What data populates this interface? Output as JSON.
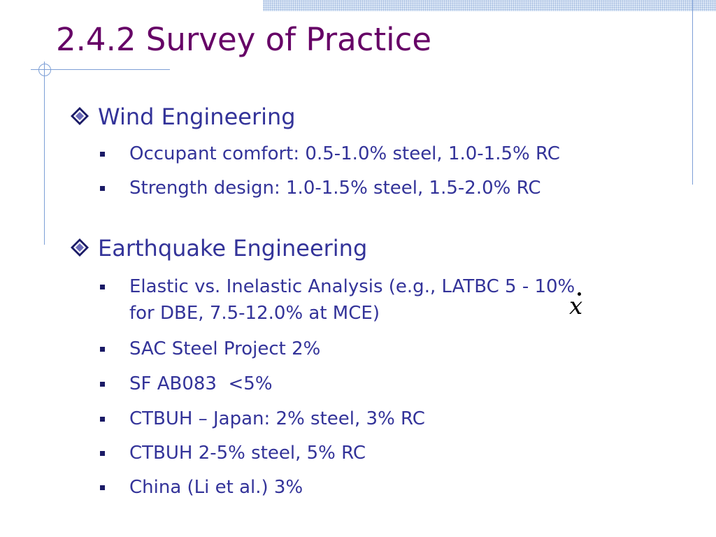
{
  "slide": {
    "title": "2.4.2 Survey of Practice",
    "colors": {
      "title": "#660066",
      "body": "#333399",
      "accent": "#7d9fd6"
    },
    "sections": [
      {
        "heading": "Wind Engineering",
        "bullet_icon": "diamond-bullet-icon",
        "items": [
          "Occupant comfort: 0.5-1.0% steel, 1.0-1.5% RC",
          "Strength design: 1.0-1.5% steel, 1.5-2.0% RC"
        ]
      },
      {
        "heading": "Earthquake Engineering",
        "bullet_icon": "diamond-bullet-icon",
        "items": [
          "Elastic vs. Inelastic Analysis (e.g., LATBC 5 - 10%",
          "for DBE, 7.5-12.0% at MCE)",
          "SAC Steel Project 2%",
          "SF AB083  <5%",
          "CTBUH – Japan: 2% steel, 3% RC",
          "CTBUH 2-5% steel, 5% RC",
          "China (Li et al.) 3%"
        ]
      }
    ],
    "math_symbol": "x",
    "math_symbol_note": "x-dot"
  }
}
